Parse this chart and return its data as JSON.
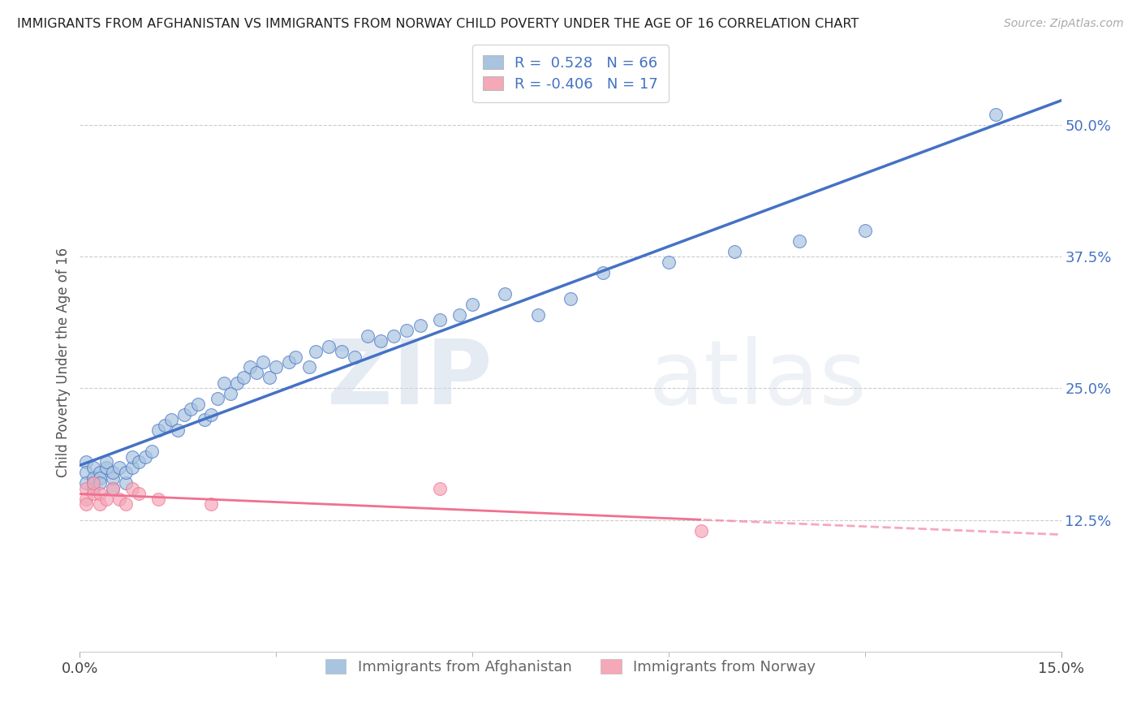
{
  "title": "IMMIGRANTS FROM AFGHANISTAN VS IMMIGRANTS FROM NORWAY CHILD POVERTY UNDER THE AGE OF 16 CORRELATION CHART",
  "source": "Source: ZipAtlas.com",
  "ylabel": "Child Poverty Under the Age of 16",
  "ytick_labels": [
    "12.5%",
    "25.0%",
    "37.5%",
    "50.0%"
  ],
  "ytick_values": [
    0.125,
    0.25,
    0.375,
    0.5
  ],
  "xlim": [
    0.0,
    0.15
  ],
  "ylim": [
    0.0,
    0.55
  ],
  "r_afghanistan": 0.528,
  "n_afghanistan": 66,
  "r_norway": -0.406,
  "n_norway": 17,
  "color_afghanistan": "#a8c4e0",
  "color_norway": "#f4a8b8",
  "line_color_afghanistan": "#4472c4",
  "line_color_norway": "#f07090",
  "watermark_zip": "ZIP",
  "watermark_atlas": "atlas",
  "afghanistan_x": [
    0.001,
    0.001,
    0.001,
    0.002,
    0.002,
    0.002,
    0.002,
    0.003,
    0.003,
    0.003,
    0.004,
    0.004,
    0.005,
    0.005,
    0.005,
    0.006,
    0.007,
    0.007,
    0.008,
    0.008,
    0.009,
    0.01,
    0.011,
    0.012,
    0.013,
    0.014,
    0.015,
    0.016,
    0.017,
    0.018,
    0.019,
    0.02,
    0.021,
    0.022,
    0.023,
    0.024,
    0.025,
    0.026,
    0.027,
    0.028,
    0.029,
    0.03,
    0.032,
    0.033,
    0.035,
    0.036,
    0.038,
    0.04,
    0.042,
    0.044,
    0.046,
    0.048,
    0.05,
    0.052,
    0.055,
    0.058,
    0.06,
    0.065,
    0.07,
    0.075,
    0.08,
    0.09,
    0.1,
    0.11,
    0.12,
    0.14
  ],
  "afghanistan_y": [
    0.18,
    0.17,
    0.16,
    0.175,
    0.165,
    0.155,
    0.16,
    0.17,
    0.165,
    0.16,
    0.175,
    0.18,
    0.155,
    0.165,
    0.17,
    0.175,
    0.16,
    0.17,
    0.175,
    0.185,
    0.18,
    0.185,
    0.19,
    0.21,
    0.215,
    0.22,
    0.21,
    0.225,
    0.23,
    0.235,
    0.22,
    0.225,
    0.24,
    0.255,
    0.245,
    0.255,
    0.26,
    0.27,
    0.265,
    0.275,
    0.26,
    0.27,
    0.275,
    0.28,
    0.27,
    0.285,
    0.29,
    0.285,
    0.28,
    0.3,
    0.295,
    0.3,
    0.305,
    0.31,
    0.315,
    0.32,
    0.33,
    0.34,
    0.32,
    0.335,
    0.36,
    0.37,
    0.38,
    0.39,
    0.4,
    0.51
  ],
  "norway_x": [
    0.001,
    0.001,
    0.001,
    0.002,
    0.002,
    0.003,
    0.003,
    0.004,
    0.005,
    0.006,
    0.007,
    0.008,
    0.009,
    0.012,
    0.02,
    0.055,
    0.095
  ],
  "norway_y": [
    0.155,
    0.145,
    0.14,
    0.15,
    0.16,
    0.14,
    0.15,
    0.145,
    0.155,
    0.145,
    0.14,
    0.155,
    0.15,
    0.145,
    0.14,
    0.155,
    0.115
  ]
}
